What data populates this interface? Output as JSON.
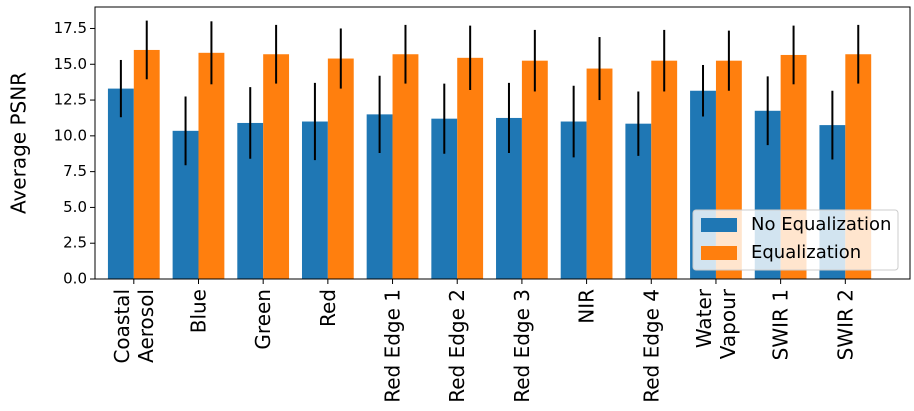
{
  "chart_data": {
    "type": "bar",
    "y_label": "Average PSNR",
    "categories": [
      "Coastal\nAerosol",
      "Blue",
      "Green",
      "Red",
      "Red Edge 1",
      "Red Edge 2",
      "Red Edge 3",
      "NIR",
      "Red Edge 4",
      "Water\nVapour",
      "SWIR 1",
      "SWIR 2"
    ],
    "series": [
      {
        "name": "No Equalization",
        "color": "#1f77b4",
        "values": [
          13.3,
          10.35,
          10.9,
          11.0,
          11.5,
          11.2,
          11.25,
          11.0,
          10.85,
          13.15,
          11.75,
          10.75
        ],
        "errors": [
          2.0,
          2.4,
          2.5,
          2.7,
          2.7,
          2.45,
          2.45,
          2.5,
          2.25,
          1.8,
          2.4,
          2.4
        ]
      },
      {
        "name": "Equalization",
        "color": "#ff7f0e",
        "values": [
          16.0,
          15.8,
          15.7,
          15.4,
          15.7,
          15.45,
          15.25,
          14.7,
          15.25,
          15.25,
          15.65,
          15.7
        ],
        "errors": [
          2.05,
          2.2,
          2.05,
          2.1,
          2.05,
          2.25,
          2.15,
          2.2,
          2.15,
          2.1,
          2.05,
          2.05
        ]
      }
    ],
    "ylim": [
      0,
      19
    ],
    "yticks": [
      {
        "value": 0,
        "label": "0.0"
      },
      2.5,
      {
        "value": 5,
        "label": "5.0"
      },
      7.5,
      {
        "value": 10,
        "label": "10.0"
      },
      12.5,
      {
        "value": 15,
        "label": "15.0"
      },
      17.5
    ],
    "legend": "lower right"
  }
}
